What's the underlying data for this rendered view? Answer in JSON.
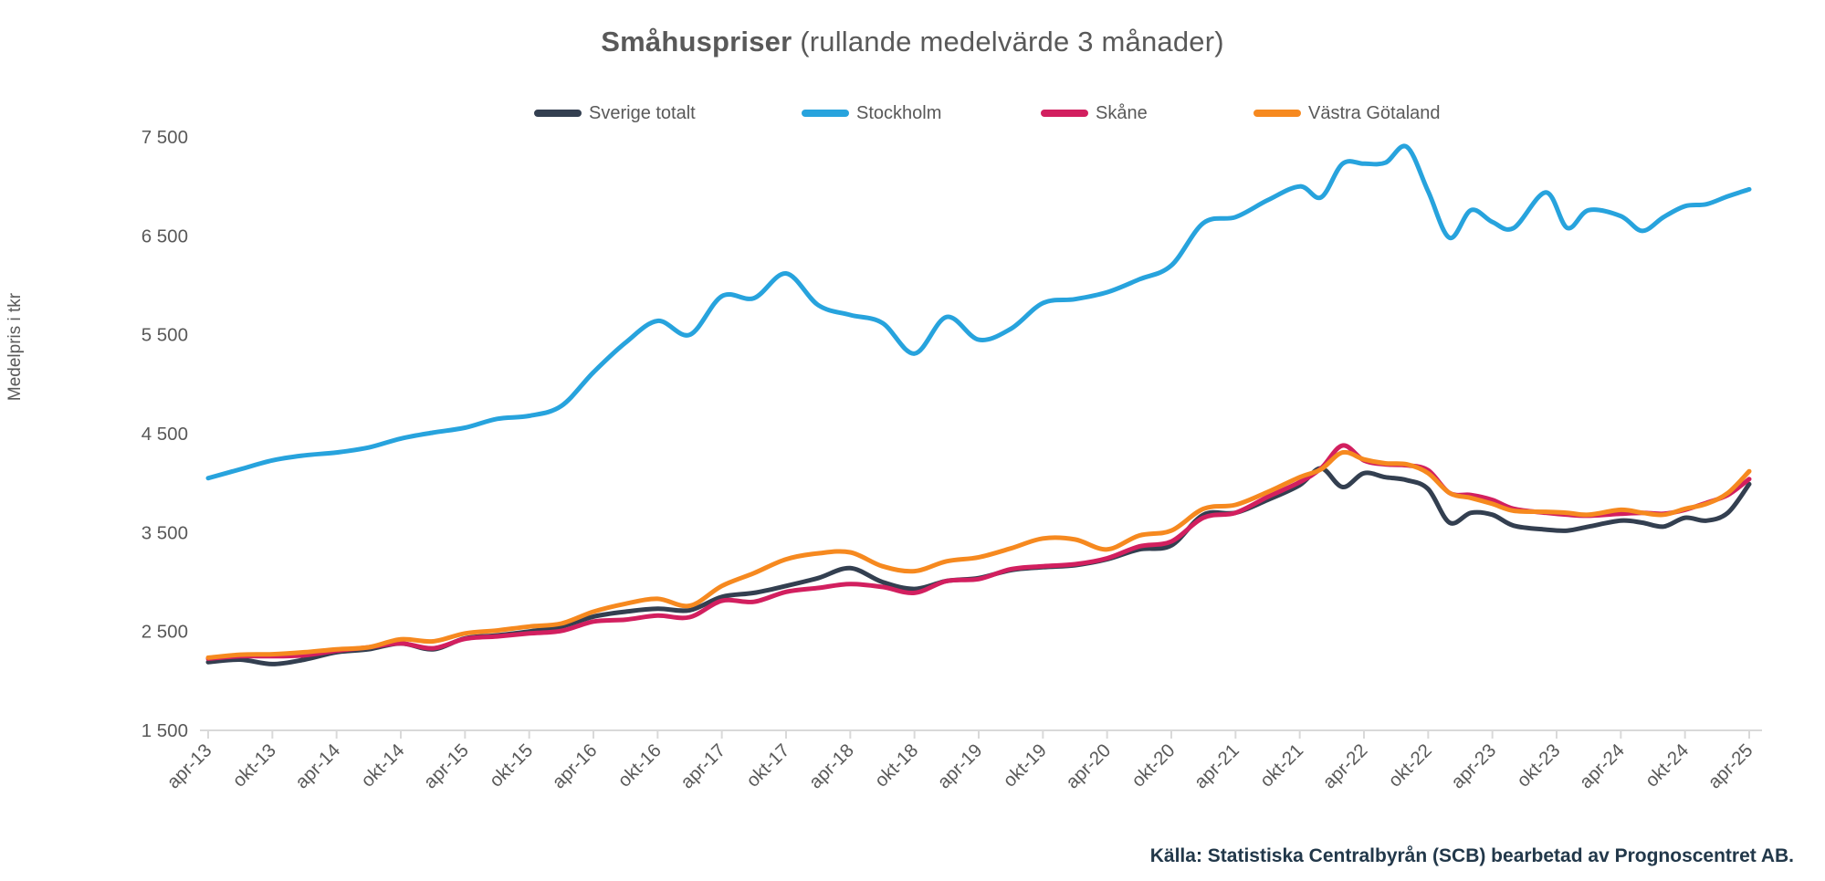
{
  "title": {
    "main": "Småhuspriser",
    "suffix": " (rullande medelvärde 3 månader)"
  },
  "legend": [
    {
      "label": "Sverige totalt",
      "color": "#333f50"
    },
    {
      "label": "Stockholm",
      "color": "#27a3dd"
    },
    {
      "label": "Skåne",
      "color": "#d21f5f"
    },
    {
      "label": "Västra Götaland",
      "color": "#f6891f"
    }
  ],
  "y_axis": {
    "title": "Medelpris i tkr",
    "tick_labels": [
      "7 500",
      "6 500",
      "5 500",
      "4 500",
      "3 500",
      "2 500",
      "1 500"
    ]
  },
  "x_axis": {
    "tick_labels": [
      "apr-13",
      "okt-13",
      "apr-14",
      "okt-14",
      "apr-15",
      "okt-15",
      "apr-16",
      "okt-16",
      "apr-17",
      "okt-17",
      "apr-18",
      "okt-18",
      "apr-19",
      "okt-19",
      "apr-20",
      "okt-20",
      "apr-21",
      "okt-21",
      "apr-22",
      "okt-22",
      "apr-23",
      "okt-23",
      "apr-24",
      "okt-24",
      "apr-25"
    ]
  },
  "source": "Källa: Statistiska Centralbyrån (SCB) bearbetad av Prognoscentret AB.",
  "colors": {
    "axis": "#d9d9d9",
    "tick_text": "#595959"
  },
  "chart_data": {
    "type": "line",
    "title": "Småhuspriser (rullande medelvärde 3 månader)",
    "ylabel": "Medelpris i tkr",
    "unit": "tkr",
    "ylim": [
      1500,
      7500
    ],
    "y_ticks": [
      1500,
      2500,
      3500,
      4500,
      5500,
      6500,
      7500
    ],
    "x_range": [
      "apr-13",
      "apr-25"
    ],
    "x_tick_labels": [
      "apr-13",
      "okt-13",
      "apr-14",
      "okt-14",
      "apr-15",
      "okt-15",
      "apr-16",
      "okt-16",
      "apr-17",
      "okt-17",
      "apr-18",
      "okt-18",
      "apr-19",
      "okt-19",
      "apr-20",
      "okt-20",
      "apr-21",
      "okt-21",
      "apr-22",
      "okt-22",
      "apr-23",
      "okt-23",
      "apr-24",
      "okt-24",
      "apr-25"
    ],
    "months_from_apr13": [
      0,
      3,
      6,
      9,
      12,
      15,
      18,
      21,
      24,
      27,
      30,
      33,
      36,
      39,
      42,
      45,
      48,
      51,
      54,
      57,
      60,
      63,
      66,
      69,
      72,
      75,
      78,
      81,
      84,
      87,
      90,
      93,
      96,
      99,
      102,
      104,
      106,
      108,
      110,
      112,
      114,
      116,
      118,
      120,
      122,
      125,
      127,
      129,
      132,
      134,
      136,
      138,
      140,
      142,
      144
    ],
    "x_total_months": 144,
    "series": [
      {
        "name": "Sverige totalt",
        "color": "#333f50",
        "values": [
          2190,
          2215,
          2170,
          2215,
          2290,
          2320,
          2380,
          2320,
          2430,
          2460,
          2500,
          2550,
          2650,
          2700,
          2730,
          2715,
          2850,
          2890,
          2960,
          3040,
          3140,
          3000,
          2930,
          3010,
          3040,
          3120,
          3150,
          3170,
          3230,
          3330,
          3370,
          3680,
          3700,
          3830,
          3980,
          4150,
          3960,
          4100,
          4060,
          4030,
          3940,
          3600,
          3700,
          3680,
          3570,
          3530,
          3520,
          3560,
          3620,
          3600,
          3560,
          3650,
          3620,
          3700,
          3990
        ]
      },
      {
        "name": "Stockholm",
        "color": "#27a3dd",
        "values": [
          4050,
          4140,
          4230,
          4280,
          4310,
          4360,
          4450,
          4510,
          4560,
          4650,
          4680,
          4780,
          5120,
          5420,
          5640,
          5500,
          5890,
          5870,
          6120,
          5800,
          5700,
          5620,
          5310,
          5680,
          5450,
          5560,
          5820,
          5860,
          5930,
          6060,
          6200,
          6630,
          6690,
          6860,
          7000,
          6890,
          7230,
          7230,
          7240,
          7400,
          6950,
          6480,
          6760,
          6640,
          6580,
          6940,
          6580,
          6760,
          6700,
          6550,
          6690,
          6800,
          6820,
          6900,
          6970
        ]
      },
      {
        "name": "Skåne",
        "color": "#d21f5f",
        "values": [
          2225,
          2250,
          2250,
          2260,
          2305,
          2340,
          2380,
          2330,
          2425,
          2450,
          2480,
          2505,
          2600,
          2620,
          2660,
          2645,
          2810,
          2800,
          2900,
          2940,
          2980,
          2950,
          2890,
          3010,
          3030,
          3130,
          3160,
          3180,
          3240,
          3360,
          3410,
          3650,
          3700,
          3860,
          4010,
          4150,
          4380,
          4230,
          4190,
          4180,
          4130,
          3900,
          3880,
          3830,
          3740,
          3700,
          3680,
          3670,
          3690,
          3700,
          3690,
          3730,
          3800,
          3880,
          4040
        ]
      },
      {
        "name": "Västra Götaland",
        "color": "#f6891f",
        "values": [
          2235,
          2265,
          2270,
          2290,
          2320,
          2340,
          2420,
          2400,
          2480,
          2510,
          2550,
          2580,
          2700,
          2780,
          2830,
          2760,
          2960,
          3090,
          3230,
          3290,
          3300,
          3160,
          3110,
          3210,
          3250,
          3340,
          3440,
          3430,
          3330,
          3470,
          3520,
          3740,
          3780,
          3910,
          4060,
          4140,
          4310,
          4240,
          4200,
          4190,
          4100,
          3900,
          3850,
          3790,
          3720,
          3710,
          3700,
          3680,
          3730,
          3700,
          3680,
          3740,
          3790,
          3900,
          4120
        ]
      }
    ],
    "legend_position": "top",
    "grid": false
  }
}
